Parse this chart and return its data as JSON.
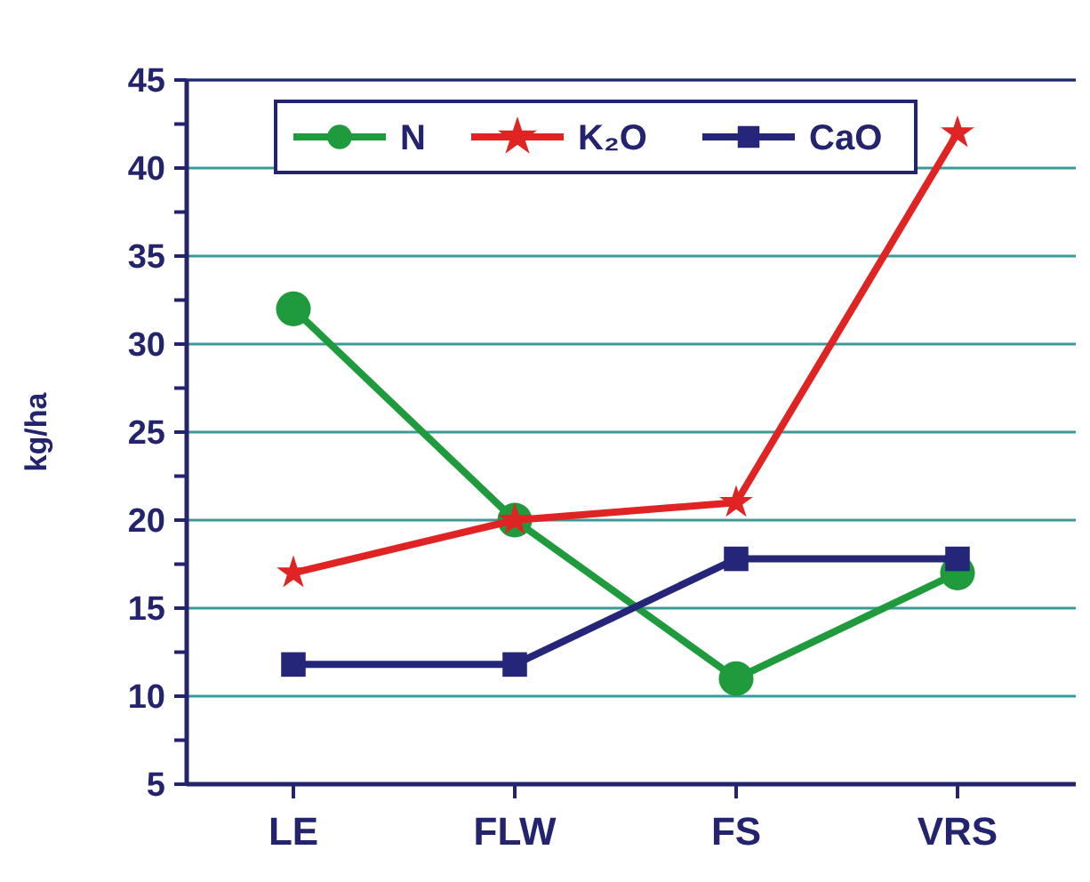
{
  "chart_data": {
    "type": "line",
    "ylabel": "kg/ha",
    "categories": [
      "LE",
      "FLW",
      "FS",
      "VRS"
    ],
    "series": [
      {
        "name": "N",
        "color": "#1f9a3c",
        "values": [
          32,
          20,
          11,
          17
        ],
        "marker": "circle"
      },
      {
        "name": "K₂O",
        "color": "#e02424",
        "values": [
          17,
          20,
          21,
          42
        ],
        "marker": "star"
      },
      {
        "name": "CaO",
        "color": "#25257a",
        "values": [
          11.8,
          11.8,
          17.8,
          17.8
        ],
        "marker": "square"
      }
    ],
    "ylim": [
      5,
      45
    ],
    "yticks": [
      5,
      {
        "value": 7.5,
        "label": null
      },
      10,
      {
        "value": 12.5,
        "label": null
      },
      15,
      {
        "value": 17.5,
        "label": null
      },
      20,
      {
        "value": 22.5,
        "label": null
      },
      25,
      {
        "value": 27.5,
        "label": null
      },
      30,
      {
        "value": 32.5,
        "label": null
      },
      35,
      {
        "value": 37.5,
        "label": null
      },
      40,
      {
        "value": 42.5,
        "label": null
      },
      45
    ],
    "grid": "y",
    "legend": "top",
    "line_style": "solid"
  }
}
